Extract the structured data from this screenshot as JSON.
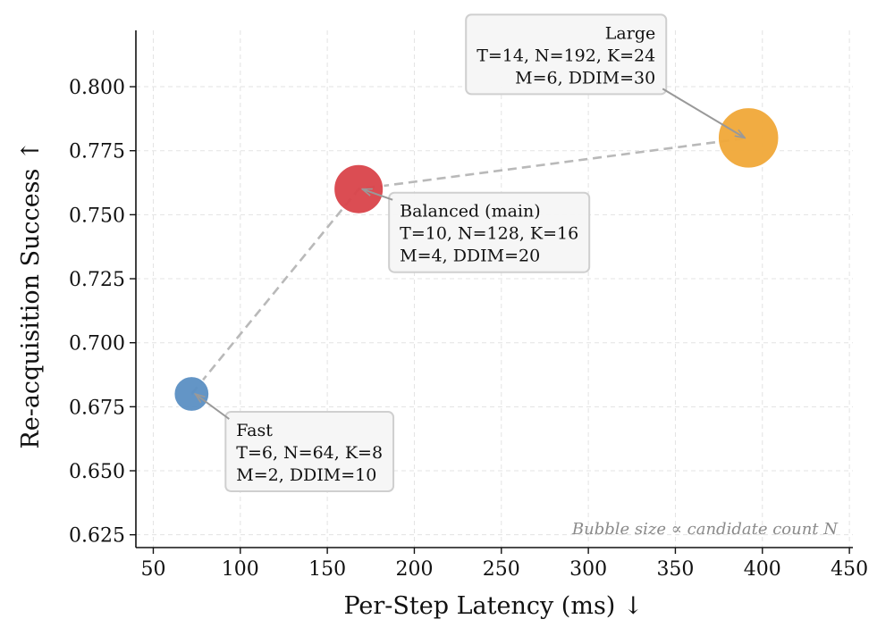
{
  "chart_data": {
    "type": "scatter",
    "title": "",
    "xlabel": "Per-Step Latency (ms) ↓",
    "ylabel": "Re-acquisition Success ↑",
    "xlim": [
      40,
      452
    ],
    "ylim": [
      0.62,
      0.822
    ],
    "xticks": [
      50,
      100,
      150,
      200,
      250,
      300,
      350,
      400,
      450
    ],
    "xtick_labels": [
      "50",
      "100",
      "150",
      "200",
      "250",
      "300",
      "350",
      "400",
      "450"
    ],
    "yticks": [
      0.625,
      0.65,
      0.675,
      0.7,
      0.725,
      0.75,
      0.775,
      0.8
    ],
    "ytick_labels": [
      "0.625",
      "0.650",
      "0.675",
      "0.700",
      "0.725",
      "0.750",
      "0.775",
      "0.800"
    ],
    "grid": true,
    "connector": "dashed",
    "points": [
      {
        "x": 72,
        "y": 0.68,
        "size": 64,
        "color": "#5b8fc3",
        "label_lines": [
          "Fast",
          "T=6, N=64, K=8",
          "M=2, DDIM=10"
        ]
      },
      {
        "x": 168,
        "y": 0.76,
        "size": 128,
        "color": "#d9434a",
        "label_lines": [
          "Balanced (main)",
          "T=10, N=128, K=16",
          "M=4, DDIM=20"
        ]
      },
      {
        "x": 392,
        "y": 0.78,
        "size": 192,
        "color": "#f0a838",
        "label_lines": [
          "Large",
          "T=14, N=192, K=24",
          "M=6, DDIM=30"
        ]
      }
    ],
    "note": "Bubble size ∝ candidate count N"
  }
}
